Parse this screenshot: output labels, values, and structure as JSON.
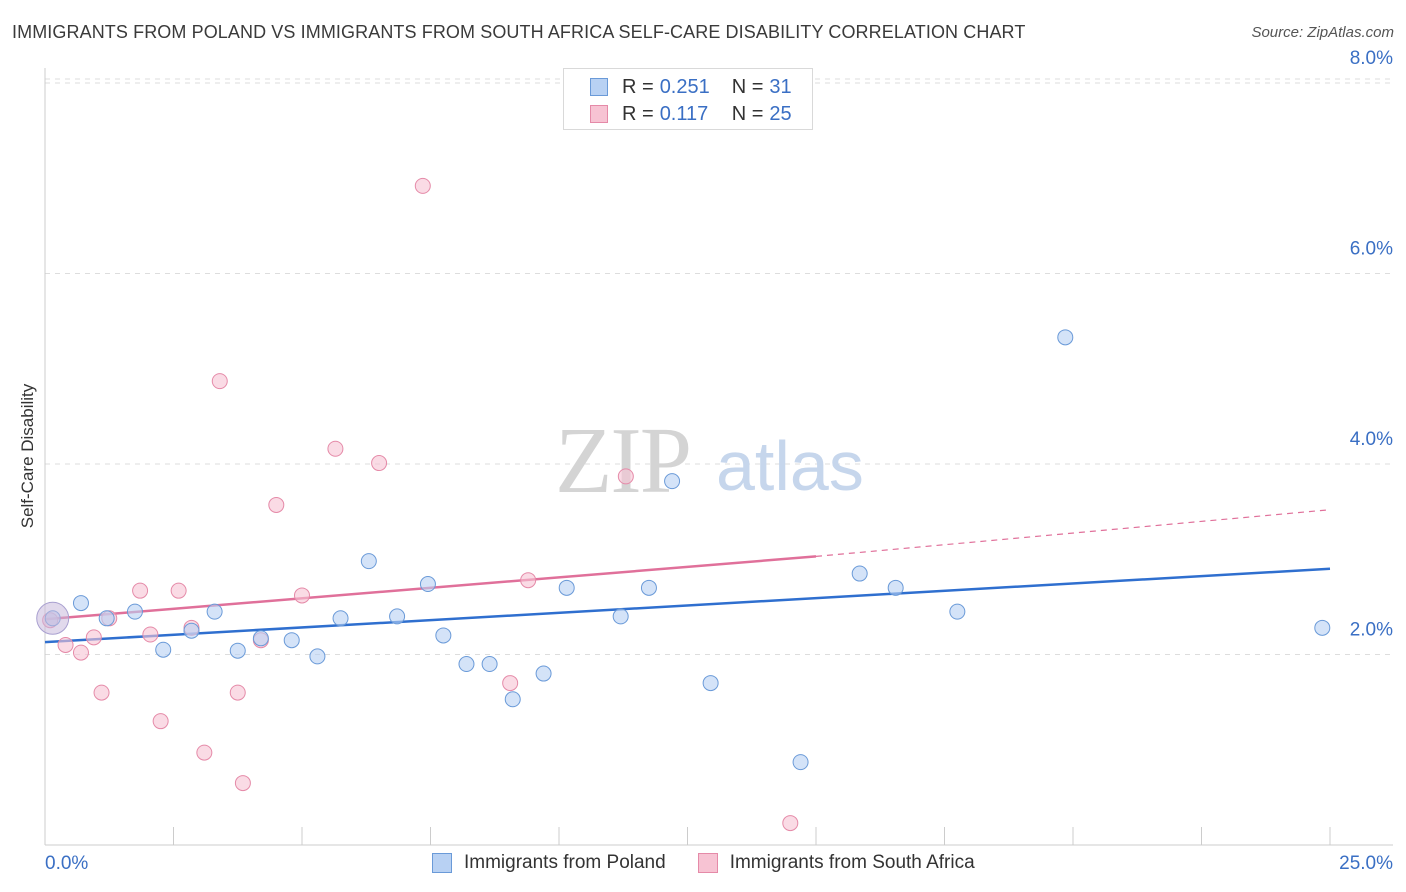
{
  "title": "IMMIGRANTS FROM POLAND VS IMMIGRANTS FROM SOUTH AFRICA SELF-CARE DISABILITY CORRELATION CHART",
  "source": "Source: ZipAtlas.com",
  "watermark": {
    "zip": "ZIP",
    "atlas": "atlas"
  },
  "legend": {
    "rows": [
      {
        "r_label": "R =",
        "r_value": "0.251",
        "n_label": "N =",
        "n_value": "31"
      },
      {
        "r_label": "R =",
        "r_value": "0.117",
        "n_label": "N =",
        "n_value": "25"
      }
    ]
  },
  "bottom_legend": {
    "poland": "Immigrants from Poland",
    "south_africa": "Immigrants from South Africa"
  },
  "colors": {
    "poland_fill": "#b8d1f3",
    "poland_stroke": "#6a9ad8",
    "poland_line": "#2f6fcf",
    "sa_fill": "#f7c3d3",
    "sa_stroke": "#e58aa8",
    "sa_line": "#e0709a",
    "tick_label": "#3a6fc4",
    "grid": "#dddddd"
  },
  "chart_data": {
    "type": "scatter",
    "ylabel": "Self-Care Disability",
    "xlim": [
      0,
      25
    ],
    "ylim": [
      0,
      8.2
    ],
    "x_tick_labels": [
      "0.0%",
      "25.0%"
    ],
    "y_ticks": [
      2,
      4,
      6,
      8
    ],
    "y_tick_labels": [
      "2.0%",
      "4.0%",
      "6.0%",
      "8.0%"
    ],
    "grid": "horizontal dashed",
    "series": [
      {
        "name": "Immigrants from Poland",
        "points": [
          [
            0.15,
            2.38
          ],
          [
            0.7,
            2.54
          ],
          [
            1.2,
            2.38
          ],
          [
            1.75,
            2.45
          ],
          [
            2.3,
            2.05
          ],
          [
            2.85,
            2.25
          ],
          [
            3.3,
            2.45
          ],
          [
            3.75,
            2.04
          ],
          [
            4.2,
            2.17
          ],
          [
            4.8,
            2.15
          ],
          [
            5.3,
            1.98
          ],
          [
            5.75,
            2.38
          ],
          [
            6.3,
            2.98
          ],
          [
            6.85,
            2.4
          ],
          [
            7.45,
            2.74
          ],
          [
            7.75,
            2.2
          ],
          [
            8.2,
            1.9
          ],
          [
            8.65,
            1.9
          ],
          [
            9.1,
            1.53
          ],
          [
            9.7,
            1.8
          ],
          [
            10.15,
            2.7
          ],
          [
            11.2,
            2.4
          ],
          [
            11.75,
            2.7
          ],
          [
            12.2,
            3.82
          ],
          [
            12.95,
            1.7
          ],
          [
            14.7,
            0.87
          ],
          [
            15.85,
            2.85
          ],
          [
            16.55,
            2.7
          ],
          [
            17.75,
            2.45
          ],
          [
            19.85,
            5.33
          ],
          [
            24.85,
            2.28
          ]
        ],
        "trend": {
          "x": [
            0,
            25
          ],
          "y": [
            2.13,
            2.9
          ]
        }
      },
      {
        "name": "Immigrants from South Africa",
        "points": [
          [
            0.1,
            2.36
          ],
          [
            0.4,
            2.1
          ],
          [
            0.7,
            2.02
          ],
          [
            0.95,
            2.18
          ],
          [
            1.1,
            1.6
          ],
          [
            1.25,
            2.38
          ],
          [
            1.85,
            2.67
          ],
          [
            2.05,
            2.21
          ],
          [
            2.25,
            1.3
          ],
          [
            2.6,
            2.67
          ],
          [
            2.85,
            2.28
          ],
          [
            3.1,
            0.97
          ],
          [
            3.4,
            4.87
          ],
          [
            3.75,
            1.6
          ],
          [
            3.85,
            0.65
          ],
          [
            4.2,
            2.15
          ],
          [
            4.5,
            3.57
          ],
          [
            5.0,
            2.62
          ],
          [
            5.65,
            4.16
          ],
          [
            6.5,
            4.01
          ],
          [
            7.35,
            6.92
          ],
          [
            9.05,
            1.7
          ],
          [
            9.4,
            2.78
          ],
          [
            11.3,
            3.87
          ],
          [
            14.5,
            0.23
          ]
        ],
        "trend": {
          "x": [
            0,
            15
          ],
          "y": [
            2.37,
            3.03
          ]
        },
        "trend_extension": {
          "x": [
            15,
            25
          ],
          "y": [
            3.03,
            3.52
          ]
        }
      }
    ]
  }
}
